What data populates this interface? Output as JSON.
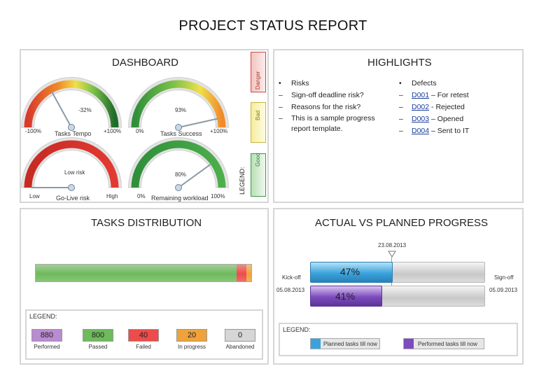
{
  "report_title": "PROJECT STATUS REPORT",
  "dashboard": {
    "title": "DASHBOARD",
    "gauges": [
      {
        "name": "Tasks Tempo",
        "value_text": "-32%",
        "min_label": "-100%",
        "max_label": "+100%",
        "level": 0.34,
        "scheme": "red-green"
      },
      {
        "name": "Tasks Success",
        "value_text": "93%",
        "min_label": "0%",
        "max_label": "+100%",
        "level": 0.93,
        "scheme": "green-red"
      },
      {
        "name": "Go-Live risk",
        "value_text": "Low risk",
        "min_label": "Low",
        "max_label": "High",
        "level": 0.0,
        "scheme": "red"
      },
      {
        "name": "Remaining workload",
        "value_text": "80%",
        "min_label": "0%",
        "max_label": "100%",
        "level": 0.8,
        "scheme": "green"
      }
    ],
    "legend": {
      "label": "LEGEND:",
      "items": [
        "Danger",
        "Bad",
        "Good"
      ],
      "colors": [
        "#d9342b",
        "#f0e04a",
        "#3a9a44"
      ]
    }
  },
  "highlights": {
    "title": "HIGHLIGHTS",
    "risks": {
      "heading": "Risks",
      "items": [
        "Sign-off deadline risk?",
        "Reasons for the risk?",
        "This is a sample progress report template."
      ]
    },
    "defects": {
      "heading": "Defects",
      "items": [
        {
          "id": "D001",
          "text": "– For retest"
        },
        {
          "id": "D002",
          "text": "- Rejected"
        },
        {
          "id": "D003",
          "text": "– Opened"
        },
        {
          "id": "D004",
          "text": "– Sent to IT"
        }
      ]
    }
  },
  "tasks_distribution": {
    "title": "TASKS DISTRIBUTION",
    "legend_label": "LEGEND:",
    "categories": [
      {
        "label": "Performed",
        "value": "880",
        "color": "#b98bd0"
      },
      {
        "label": "Passed",
        "value": "800",
        "color": "#6fba5c"
      },
      {
        "label": "Failed",
        "value": "40",
        "color": "#ee4b4b"
      },
      {
        "label": "In progress",
        "value": "20",
        "color": "#f0a23a"
      },
      {
        "label": "Abandoned",
        "value": "0",
        "color": "#d6d6d6"
      }
    ],
    "bar_values": [
      800,
      40,
      20,
      0
    ]
  },
  "progress": {
    "title": "ACTUAL VS PLANNED PROGRESS",
    "today_label": "23.08.2013",
    "kickoff_label": "Kick-off",
    "signoff_label": "Sign-off",
    "start_date": "05.08.2013",
    "end_date": "05.09.2013",
    "planned_percent": "47%",
    "performed_percent": "41%",
    "planned_fraction": 0.47,
    "performed_fraction": 0.41,
    "today_fraction": 0.39,
    "legend_label": "LEGEND:",
    "legend_planned": "Planned tasks till now",
    "legend_performed": "Performed tasks till now",
    "colors": {
      "planned": "#3aa3dd",
      "performed": "#7c4bbf"
    }
  }
}
